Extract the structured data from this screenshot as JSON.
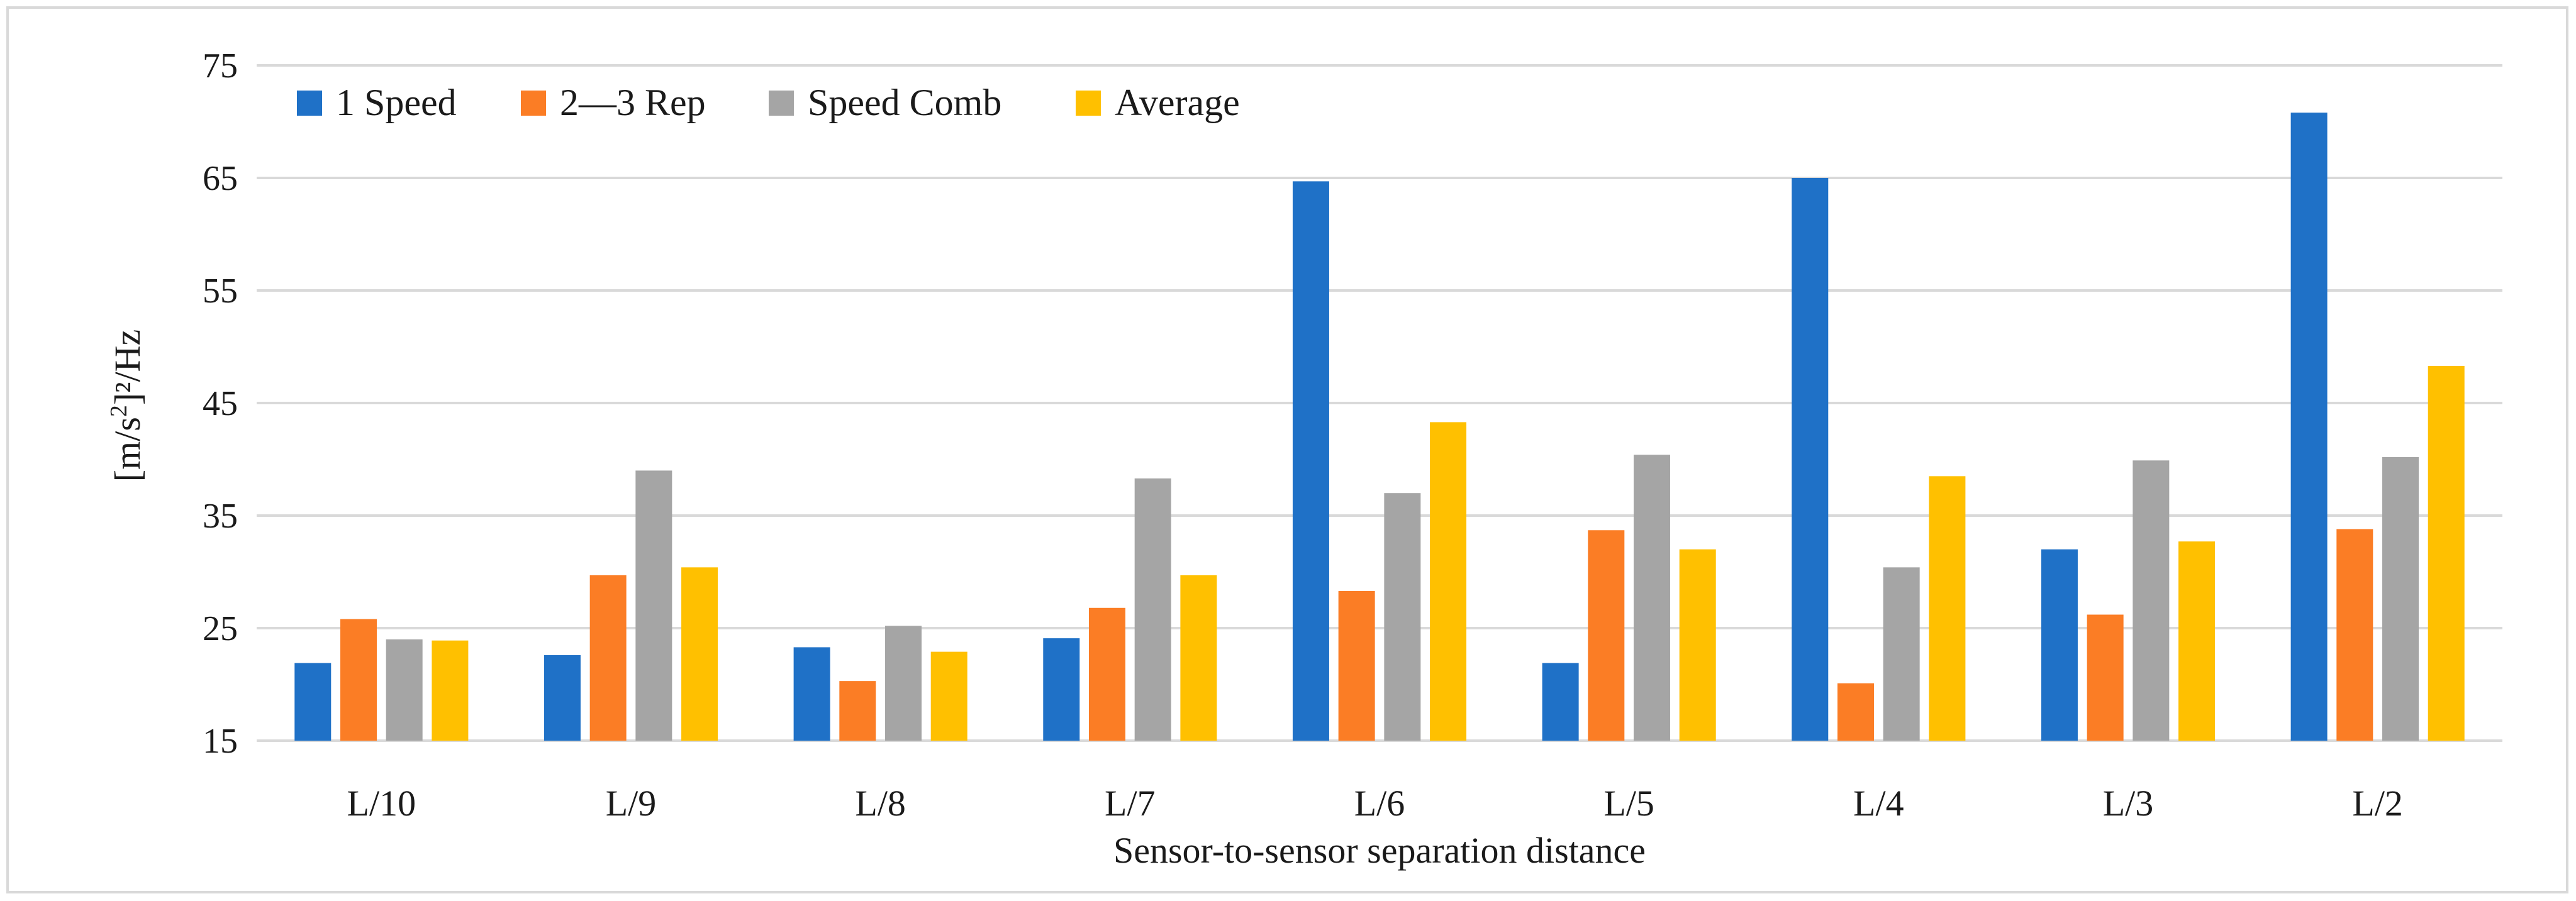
{
  "chart_data": {
    "type": "bar",
    "title": "",
    "xlabel": "Sensor-to-sensor separation distance",
    "ylabel": "[m/s²]²/Hz",
    "ylim": [
      15,
      75
    ],
    "yticks": [
      15,
      25,
      35,
      45,
      55,
      65,
      75
    ],
    "grid": true,
    "legend_position": "top-left",
    "categories": [
      "L/10",
      "L/9",
      "L/8",
      "L/7",
      "L/6",
      "L/5",
      "L/4",
      "L/3",
      "L/2"
    ],
    "series": [
      {
        "name": "1 Speed",
        "color": "#1f71c7",
        "values": [
          21.9,
          22.6,
          23.3,
          24.1,
          64.7,
          21.9,
          65.0,
          32.0,
          70.8
        ]
      },
      {
        "name": "2—3 Rep",
        "color": "#fb7d25",
        "values": [
          25.8,
          29.7,
          20.3,
          26.8,
          28.3,
          33.7,
          20.1,
          26.2,
          33.8
        ]
      },
      {
        "name": "Speed Comb",
        "color": "#a5a5a5",
        "values": [
          24.0,
          39.0,
          25.2,
          38.3,
          37.0,
          40.4,
          30.4,
          39.9,
          40.2
        ]
      },
      {
        "name": "Average",
        "color": "#ffc000",
        "values": [
          23.9,
          30.4,
          22.9,
          29.7,
          43.3,
          32.0,
          38.5,
          32.7,
          48.3
        ]
      }
    ]
  }
}
